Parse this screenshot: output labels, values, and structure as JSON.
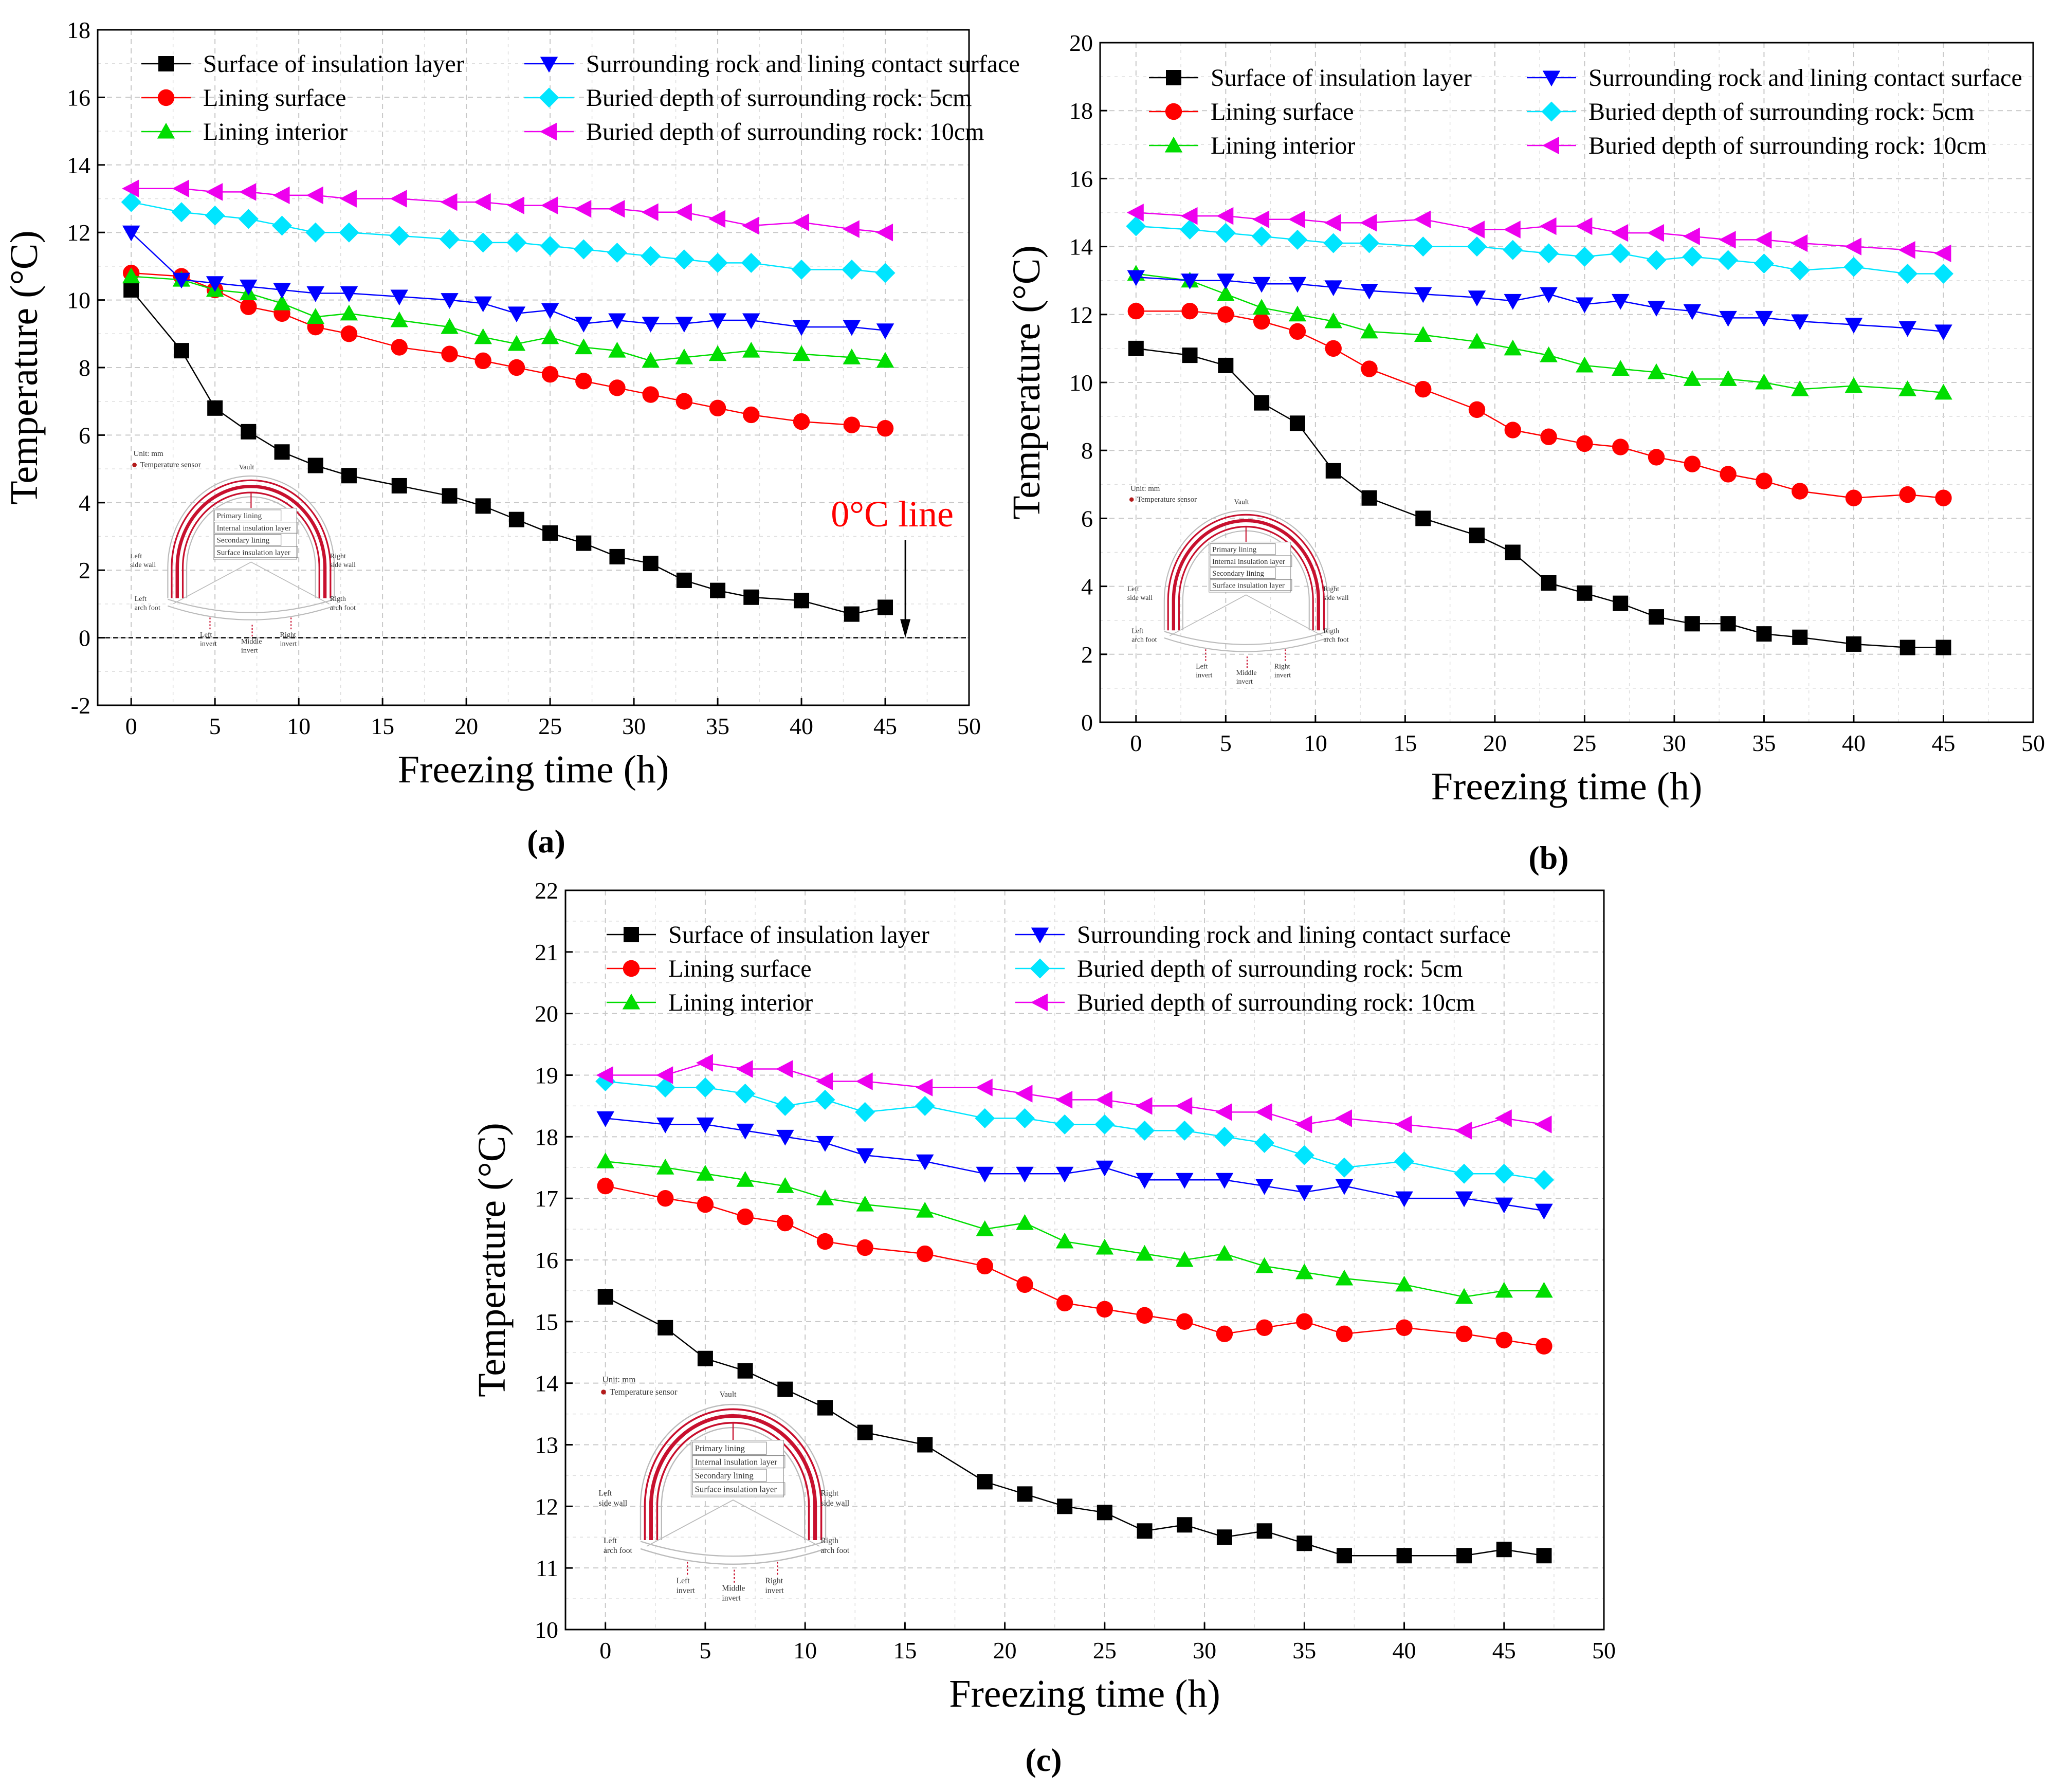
{
  "figure": {
    "legend_labels": [
      "Surface of insulation layer",
      "Lining surface",
      "Lining interior",
      "Surrounding rock and lining contact surface",
      "Buried depth of surrounding rock: 5cm",
      "Buried depth of surrounding rock: 10cm"
    ],
    "series_colors": [
      "#000000",
      "#ff0000",
      "#00dd00",
      "#0000ff",
      "#00e5ff",
      "#ee00ee"
    ],
    "markers": [
      "square",
      "circle",
      "triangle-up",
      "triangle-down",
      "diamond",
      "triangle-left"
    ],
    "inset": {
      "unit": "Unit: mm",
      "sensor": "Temperature sensor",
      "vault": "Vault",
      "layers": [
        "Primary lining",
        "Internal insulation layer",
        "Secondary lining",
        "Surface insulation layer"
      ],
      "left_side_wall": [
        "Left",
        "side wall"
      ],
      "right_side_wall": [
        "Right",
        "side wall"
      ],
      "left_arch_foot": [
        "Left",
        "arch foot"
      ],
      "right_arch_foot": [
        "Rigth",
        "arch foot"
      ],
      "left_invert": [
        "Left",
        "invert"
      ],
      "middle_invert": [
        "Middle",
        "invert"
      ],
      "right_invert": [
        "Right",
        "invert"
      ]
    }
  },
  "chart_data": [
    {
      "type": "line",
      "panel_label": "(a)",
      "xlabel": "Freezing time (h)",
      "ylabel": "Temperature (°C)",
      "xlim": [
        -2,
        50
      ],
      "ylim": [
        -2,
        18
      ],
      "xticks": [
        0,
        5,
        10,
        15,
        20,
        25,
        30,
        35,
        40,
        45,
        50
      ],
      "yticks": [
        -2,
        0,
        2,
        4,
        6,
        8,
        10,
        12,
        14,
        16,
        18
      ],
      "annotation": "0°C line",
      "x": [
        0,
        3,
        5,
        7,
        9,
        11,
        13,
        16,
        19,
        21,
        23,
        25,
        27,
        29,
        31,
        33,
        35,
        37,
        40,
        43,
        45
      ],
      "series": [
        {
          "name": "Surface of insulation layer",
          "values": [
            10.3,
            8.5,
            6.8,
            6.1,
            5.5,
            5.1,
            4.8,
            4.5,
            4.2,
            3.9,
            3.5,
            3.1,
            2.8,
            2.4,
            2.2,
            1.7,
            1.4,
            1.2,
            1.1,
            0.7,
            0.9
          ]
        },
        {
          "name": "Lining surface",
          "values": [
            10.8,
            10.7,
            10.3,
            9.8,
            9.6,
            9.2,
            9.0,
            8.6,
            8.4,
            8.2,
            8.0,
            7.8,
            7.6,
            7.4,
            7.2,
            7.0,
            6.8,
            6.6,
            6.4,
            6.3,
            6.2
          ]
        },
        {
          "name": "Lining interior",
          "values": [
            10.7,
            10.6,
            10.3,
            10.2,
            9.9,
            9.5,
            9.6,
            9.4,
            9.2,
            8.9,
            8.7,
            8.9,
            8.6,
            8.5,
            8.2,
            8.3,
            8.4,
            8.5,
            8.4,
            8.3,
            8.2
          ]
        },
        {
          "name": "Surrounding rock and lining contact surface",
          "values": [
            12.0,
            10.6,
            10.5,
            10.4,
            10.3,
            10.2,
            10.2,
            10.1,
            10.0,
            9.9,
            9.6,
            9.7,
            9.3,
            9.4,
            9.3,
            9.3,
            9.4,
            9.4,
            9.2,
            9.2,
            9.1
          ]
        },
        {
          "name": "Buried depth of surrounding rock: 5cm",
          "values": [
            12.9,
            12.6,
            12.5,
            12.4,
            12.2,
            12.0,
            12.0,
            11.9,
            11.8,
            11.7,
            11.7,
            11.6,
            11.5,
            11.4,
            11.3,
            11.2,
            11.1,
            11.1,
            10.9,
            10.9,
            10.8
          ]
        },
        {
          "name": "Buried depth of surrounding rock: 10cm",
          "values": [
            13.3,
            13.3,
            13.2,
            13.2,
            13.1,
            13.1,
            13.0,
            13.0,
            12.9,
            12.9,
            12.8,
            12.8,
            12.7,
            12.7,
            12.6,
            12.6,
            12.4,
            12.2,
            12.3,
            12.1,
            12.0
          ]
        }
      ]
    },
    {
      "type": "line",
      "panel_label": "(b)",
      "xlabel": "Freezing time (h)",
      "ylabel": "Temperature  (°C)",
      "xlim": [
        -2,
        50
      ],
      "ylim": [
        0,
        20
      ],
      "xticks": [
        0,
        5,
        10,
        15,
        20,
        25,
        30,
        35,
        40,
        45,
        50
      ],
      "yticks": [
        0,
        2,
        4,
        6,
        8,
        10,
        12,
        14,
        16,
        18,
        20
      ],
      "x": [
        0,
        3,
        5,
        7,
        9,
        11,
        13,
        16,
        19,
        21,
        23,
        25,
        27,
        29,
        31,
        33,
        35,
        37,
        40,
        43,
        45
      ],
      "series": [
        {
          "name": "Surface of insulation layer",
          "values": [
            11.0,
            10.8,
            10.5,
            9.4,
            8.8,
            7.4,
            6.6,
            6.0,
            5.5,
            5.0,
            4.1,
            3.8,
            3.5,
            3.1,
            2.9,
            2.9,
            2.6,
            2.5,
            2.3,
            2.2,
            2.2
          ]
        },
        {
          "name": "Lining surface",
          "values": [
            12.1,
            12.1,
            12.0,
            11.8,
            11.5,
            11.0,
            10.4,
            9.8,
            9.2,
            8.6,
            8.4,
            8.2,
            8.1,
            7.8,
            7.6,
            7.3,
            7.1,
            6.8,
            6.6,
            6.7,
            6.6
          ]
        },
        {
          "name": "Lining interior",
          "values": [
            13.2,
            13.0,
            12.6,
            12.2,
            12.0,
            11.8,
            11.5,
            11.4,
            11.2,
            11.0,
            10.8,
            10.5,
            10.4,
            10.3,
            10.1,
            10.1,
            10.0,
            9.8,
            9.9,
            9.8,
            9.7
          ]
        },
        {
          "name": "Surrounding rock and lining contact surface",
          "values": [
            13.1,
            13.0,
            13.0,
            12.9,
            12.9,
            12.8,
            12.7,
            12.6,
            12.5,
            12.4,
            12.6,
            12.3,
            12.4,
            12.2,
            12.1,
            11.9,
            11.9,
            11.8,
            11.7,
            11.6,
            11.5
          ]
        },
        {
          "name": "Buried depth of surrounding rock: 5cm",
          "values": [
            14.6,
            14.5,
            14.4,
            14.3,
            14.2,
            14.1,
            14.1,
            14.0,
            14.0,
            13.9,
            13.8,
            13.7,
            13.8,
            13.6,
            13.7,
            13.6,
            13.5,
            13.3,
            13.4,
            13.2,
            13.2
          ]
        },
        {
          "name": "Buried depth of surrounding rock: 10cm",
          "values": [
            15.0,
            14.9,
            14.9,
            14.8,
            14.8,
            14.7,
            14.7,
            14.8,
            14.5,
            14.5,
            14.6,
            14.6,
            14.4,
            14.4,
            14.3,
            14.2,
            14.2,
            14.1,
            14.0,
            13.9,
            13.8
          ]
        }
      ]
    },
    {
      "type": "line",
      "panel_label": "(c)",
      "xlabel": "Freezing time (h)",
      "ylabel": "Temperature (°C)",
      "xlim": [
        -2,
        50
      ],
      "ylim": [
        10,
        22
      ],
      "xticks": [
        0,
        5,
        10,
        15,
        20,
        25,
        30,
        35,
        40,
        45,
        50
      ],
      "yticks": [
        10,
        11,
        12,
        13,
        14,
        15,
        16,
        17,
        18,
        19,
        20,
        21,
        22
      ],
      "x": [
        0,
        3,
        5,
        7,
        9,
        11,
        13,
        16,
        19,
        21,
        23,
        25,
        27,
        29,
        31,
        33,
        35,
        37,
        40,
        43,
        45,
        47
      ],
      "series": [
        {
          "name": "Surface of insulation layer",
          "values": [
            15.4,
            14.9,
            14.4,
            14.2,
            13.9,
            13.6,
            13.2,
            13.0,
            12.4,
            12.2,
            12.0,
            11.9,
            11.6,
            11.7,
            11.5,
            11.6,
            11.4,
            11.2,
            11.2,
            11.2,
            11.3,
            11.2
          ]
        },
        {
          "name": "Lining surface",
          "values": [
            17.2,
            17.0,
            16.9,
            16.7,
            16.6,
            16.3,
            16.2,
            16.1,
            15.9,
            15.6,
            15.3,
            15.2,
            15.1,
            15.0,
            14.8,
            14.9,
            15.0,
            14.8,
            14.9,
            14.8,
            14.7,
            14.6
          ]
        },
        {
          "name": "Lining interior",
          "values": [
            17.6,
            17.5,
            17.4,
            17.3,
            17.2,
            17.0,
            16.9,
            16.8,
            16.5,
            16.6,
            16.3,
            16.2,
            16.1,
            16.0,
            16.1,
            15.9,
            15.8,
            15.7,
            15.6,
            15.4,
            15.5,
            15.5
          ]
        },
        {
          "name": "Surrounding rock and lining contact surface",
          "values": [
            18.3,
            18.2,
            18.2,
            18.1,
            18.0,
            17.9,
            17.7,
            17.6,
            17.4,
            17.4,
            17.4,
            17.5,
            17.3,
            17.3,
            17.3,
            17.2,
            17.1,
            17.2,
            17.0,
            17.0,
            16.9,
            16.8
          ]
        },
        {
          "name": "Buried depth of surrounding rock: 5cm",
          "values": [
            18.9,
            18.8,
            18.8,
            18.7,
            18.5,
            18.6,
            18.4,
            18.5,
            18.3,
            18.3,
            18.2,
            18.2,
            18.1,
            18.1,
            18.0,
            17.9,
            17.7,
            17.5,
            17.6,
            17.4,
            17.4,
            17.3
          ]
        },
        {
          "name": "Buried depth of surrounding rock: 10cm",
          "values": [
            19.0,
            19.0,
            19.2,
            19.1,
            19.1,
            18.9,
            18.9,
            18.8,
            18.8,
            18.7,
            18.6,
            18.6,
            18.5,
            18.5,
            18.4,
            18.4,
            18.2,
            18.3,
            18.2,
            18.1,
            18.3,
            18.2
          ]
        }
      ]
    }
  ]
}
